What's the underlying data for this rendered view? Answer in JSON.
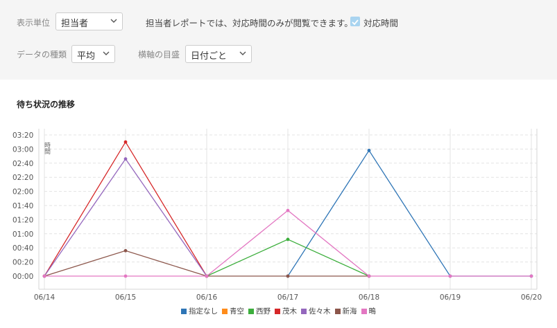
{
  "filters": {
    "unit_label": "表示単位",
    "unit_value": "担当者",
    "note": "担当者レポートでは、対応時間のみが閲覧できます。",
    "checkbox_label": "対応時間",
    "datatype_label": "データの種類",
    "datatype_value": "平均",
    "axis_label": "横軸の目盛",
    "axis_value": "日付ごと"
  },
  "chart_title": "待ち状況の推移",
  "colors": {
    "accent_check": "#a9d4f0",
    "grid": "#e3e3e3"
  },
  "chart_data": {
    "type": "line",
    "title": "待ち状況の推移",
    "categories": [
      "06/14",
      "06/15",
      "06/16",
      "06/17",
      "06/18",
      "06/19",
      "06/20"
    ],
    "y_ticks": [
      "00:00",
      "00:20",
      "00:40",
      "01:00",
      "01:20",
      "01:40",
      "02:00",
      "02:20",
      "02:40",
      "03:00",
      "03:20"
    ],
    "y_unit_label": "時間",
    "ylim_minutes": [
      0,
      200
    ],
    "y_unit": "minutes",
    "grid": true,
    "legend_position": "bottom",
    "series": [
      {
        "name": "指定なし",
        "color": "#2e75b6",
        "values": [
          null,
          null,
          null,
          0,
          178,
          0,
          0
        ]
      },
      {
        "name": "青空",
        "color": "#ff8c1a",
        "values": [
          null,
          null,
          null,
          null,
          null,
          null,
          null
        ]
      },
      {
        "name": "西野",
        "color": "#3cae3c",
        "values": [
          null,
          null,
          0,
          52,
          0,
          null,
          null
        ]
      },
      {
        "name": "茂木",
        "color": "#d62728",
        "values": [
          0,
          190,
          0,
          null,
          null,
          null,
          null
        ]
      },
      {
        "name": "佐々木",
        "color": "#9467bd",
        "values": [
          0,
          166,
          0,
          null,
          null,
          null,
          null
        ]
      },
      {
        "name": "新海",
        "color": "#8c564b",
        "values": [
          0,
          36,
          0,
          0,
          0,
          null,
          null
        ]
      },
      {
        "name": "鴫",
        "color": "#e377c2",
        "values": [
          0,
          0,
          0,
          93,
          0,
          0,
          0
        ]
      }
    ]
  }
}
